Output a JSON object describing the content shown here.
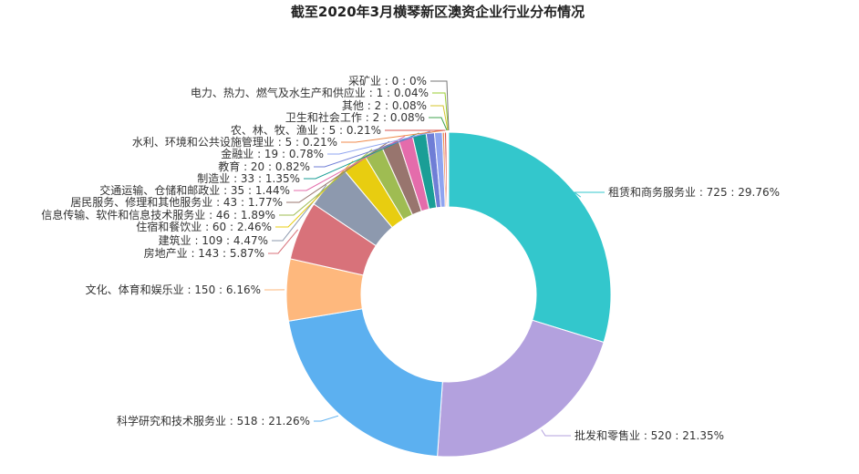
{
  "chart_data": {
    "type": "pie",
    "variant": "donut",
    "title": "截至2020年3月横琴新区澳资企业行业分布情况",
    "legend": "none",
    "label_separator": " : ",
    "slices": [
      {
        "name": "租赁和商务服务业",
        "value": 725,
        "percent": "29.76%",
        "color": "#33c7cc"
      },
      {
        "name": "批发和零售业",
        "value": 520,
        "percent": "21.35%",
        "color": "#b3a1de"
      },
      {
        "name": "科学研究和技术服务业",
        "value": 518,
        "percent": "21.26%",
        "color": "#5cb0f0"
      },
      {
        "name": "文化、体育和娱乐业",
        "value": 150,
        "percent": "6.16%",
        "color": "#feb87d"
      },
      {
        "name": "房地产业",
        "value": 143,
        "percent": "5.87%",
        "color": "#d8727a"
      },
      {
        "name": "建筑业",
        "value": 109,
        "percent": "4.47%",
        "color": "#8d99ae"
      },
      {
        "name": "住宿和餐饮业",
        "value": 60,
        "percent": "2.46%",
        "color": "#e8cd10"
      },
      {
        "name": "信息传输、软件和信息技术服务业",
        "value": 46,
        "percent": "1.89%",
        "color": "#9fbc52"
      },
      {
        "name": "居民服务、修理和其他服务业",
        "value": 43,
        "percent": "1.77%",
        "color": "#98756e"
      },
      {
        "name": "交通运输、仓储和邮政业",
        "value": 35,
        "percent": "1.44%",
        "color": "#e46cab"
      },
      {
        "name": "制造业",
        "value": 33,
        "percent": "1.35%",
        "color": "#1a9e96"
      },
      {
        "name": "教育",
        "value": 20,
        "percent": "0.82%",
        "color": "#6f7ed6"
      },
      {
        "name": "金融业",
        "value": 19,
        "percent": "0.78%",
        "color": "#8fa4f0"
      },
      {
        "name": "水利、环境和公共设施管理业",
        "value": 5,
        "percent": "0.21%",
        "color": "#f08a4b"
      },
      {
        "name": "农、林、牧、渔业",
        "value": 5,
        "percent": "0.21%",
        "color": "#d9534f"
      },
      {
        "name": "卫生和社会工作",
        "value": 2,
        "percent": "0.08%",
        "color": "#3fa34d"
      },
      {
        "name": "其他",
        "value": 2,
        "percent": "0.08%",
        "color": "#d4c42b"
      },
      {
        "name": "电力、热力、燃气及水生产和供应业",
        "value": 1,
        "percent": "0.04%",
        "color": "#9acd32"
      },
      {
        "name": "采矿业",
        "value": 0,
        "percent": "0%",
        "color": "#777777"
      }
    ]
  }
}
